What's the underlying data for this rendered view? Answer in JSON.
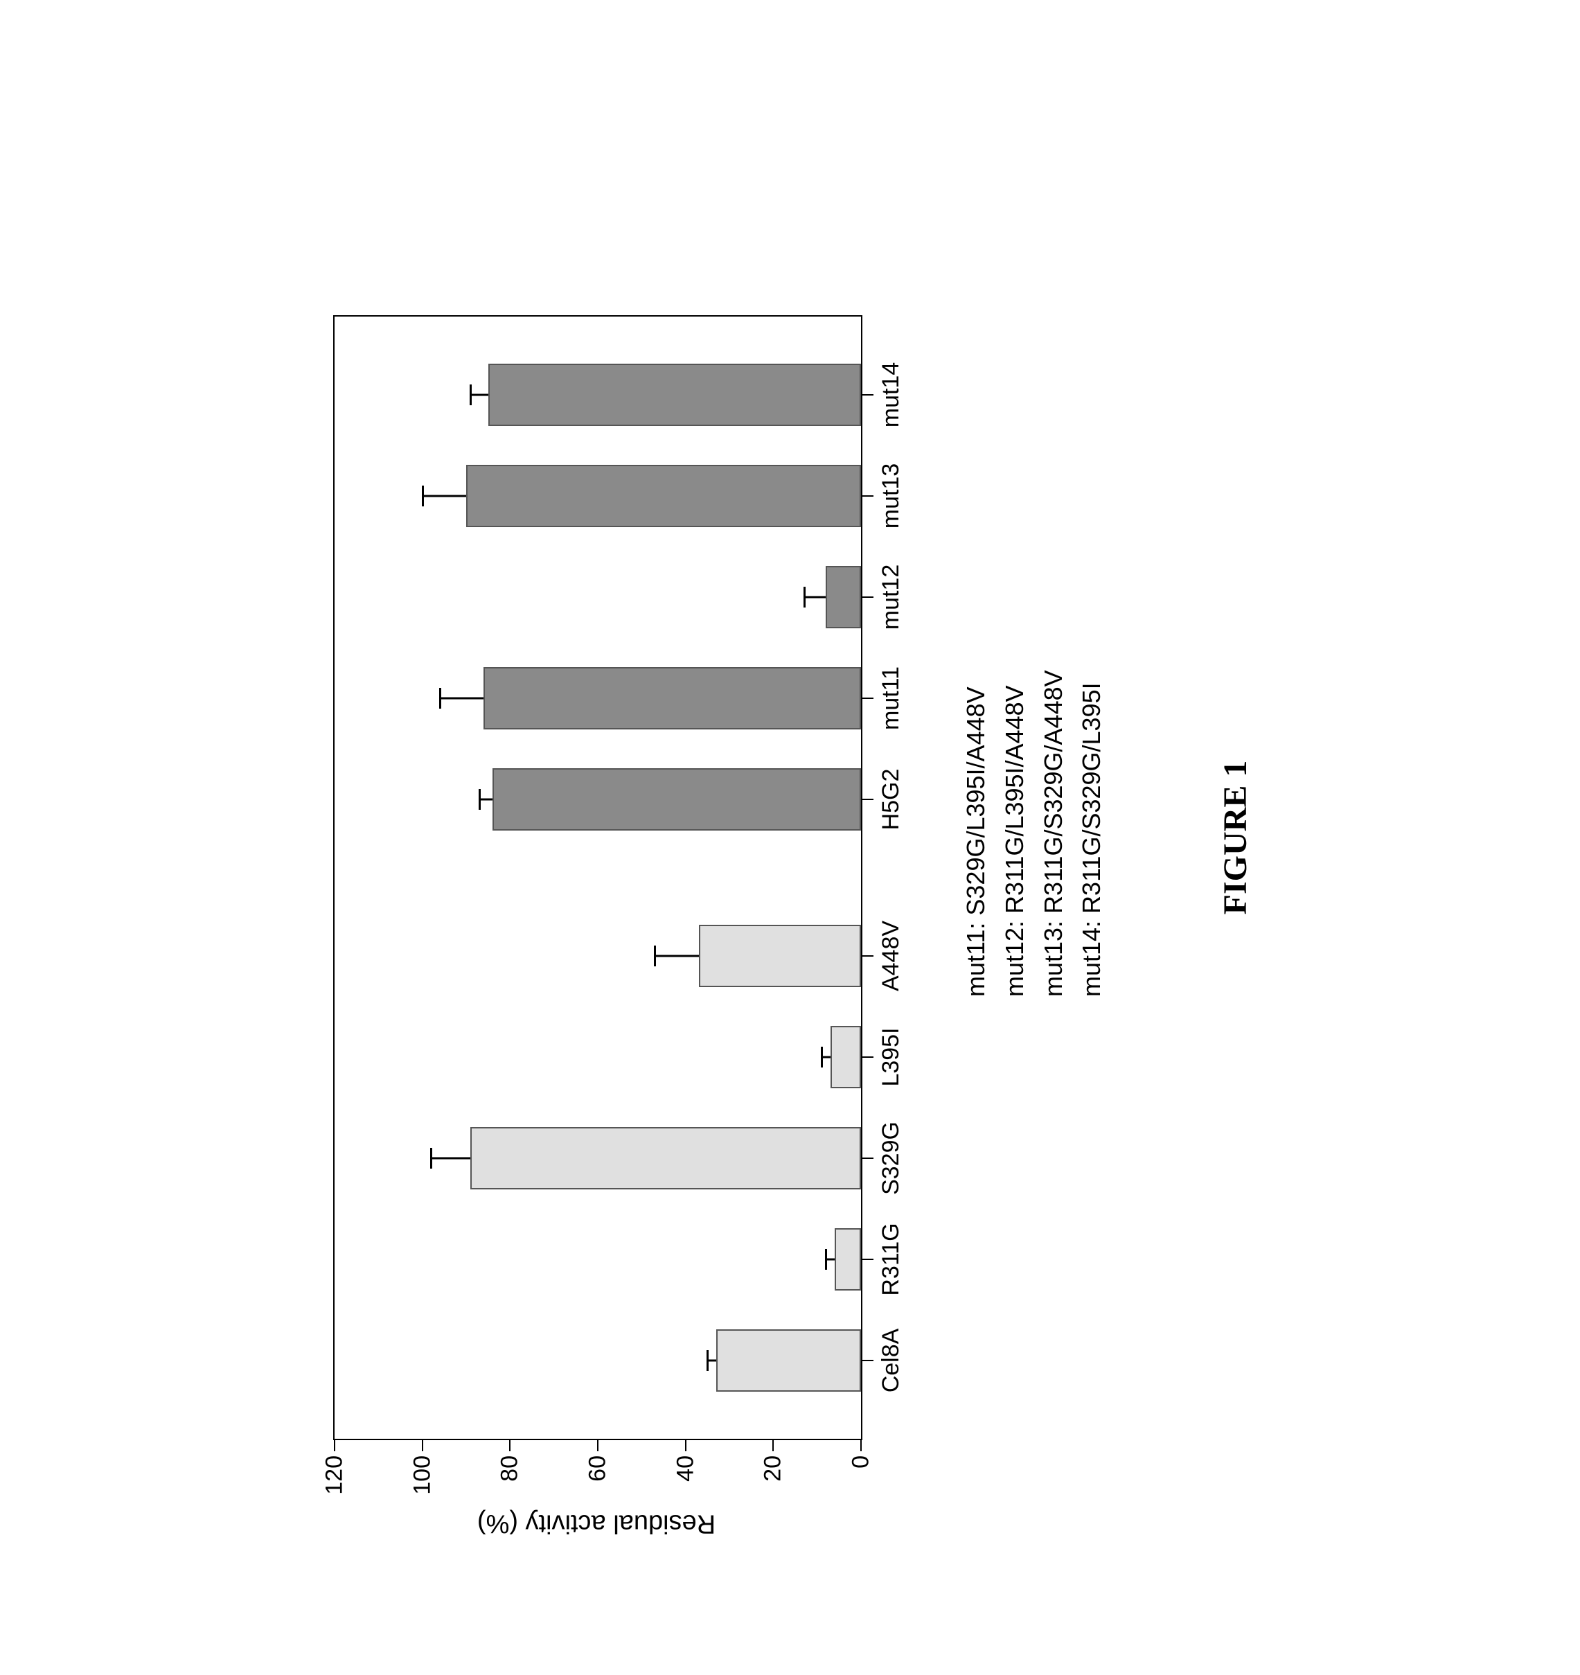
{
  "figure": {
    "title": "FIGURE 1",
    "title_fontsize": 48,
    "title_font": "Times New Roman",
    "rotation_deg": -90,
    "background_color": "#ffffff"
  },
  "chart": {
    "type": "bar",
    "ylabel": "Residual activity (%)",
    "ylabel_fontsize": 38,
    "xlabel": "",
    "ylim": [
      0,
      120
    ],
    "ytick_step": 20,
    "yticks": [
      0,
      20,
      40,
      60,
      80,
      100,
      120
    ],
    "tick_fontsize": 34,
    "axis_color": "#000000",
    "axis_width": 2,
    "plot_background": "#ffffff",
    "bar_width": 0.62,
    "bar_border_color": "#555555",
    "bar_border_width": 2,
    "error_cap_width": 30,
    "error_line_width": 3,
    "group_gap_index": 5,
    "categories": [
      "Cel8A",
      "R311G",
      "S329G",
      "L395I",
      "A448V",
      "H5G2",
      "mut11",
      "mut12",
      "mut13",
      "mut14"
    ],
    "values": [
      33,
      6,
      89,
      7,
      37,
      84,
      86,
      8,
      90,
      85
    ],
    "errors": [
      2,
      2,
      9,
      2,
      10,
      3,
      10,
      5,
      10,
      4
    ],
    "bar_colors": [
      "#e0e0e0",
      "#e0e0e0",
      "#e0e0e0",
      "#e0e0e0",
      "#e0e0e0",
      "#8a8a8a",
      "#8a8a8a",
      "#8a8a8a",
      "#8a8a8a",
      "#8a8a8a"
    ]
  },
  "legend": {
    "fontsize": 36,
    "lines": [
      "mut11: S329G/L395I/A448V",
      "mut12: R311G/L395I/A448V",
      "mut13: R311G/S329G/A448V",
      "mut14: R311G/S329G/L395I"
    ]
  }
}
